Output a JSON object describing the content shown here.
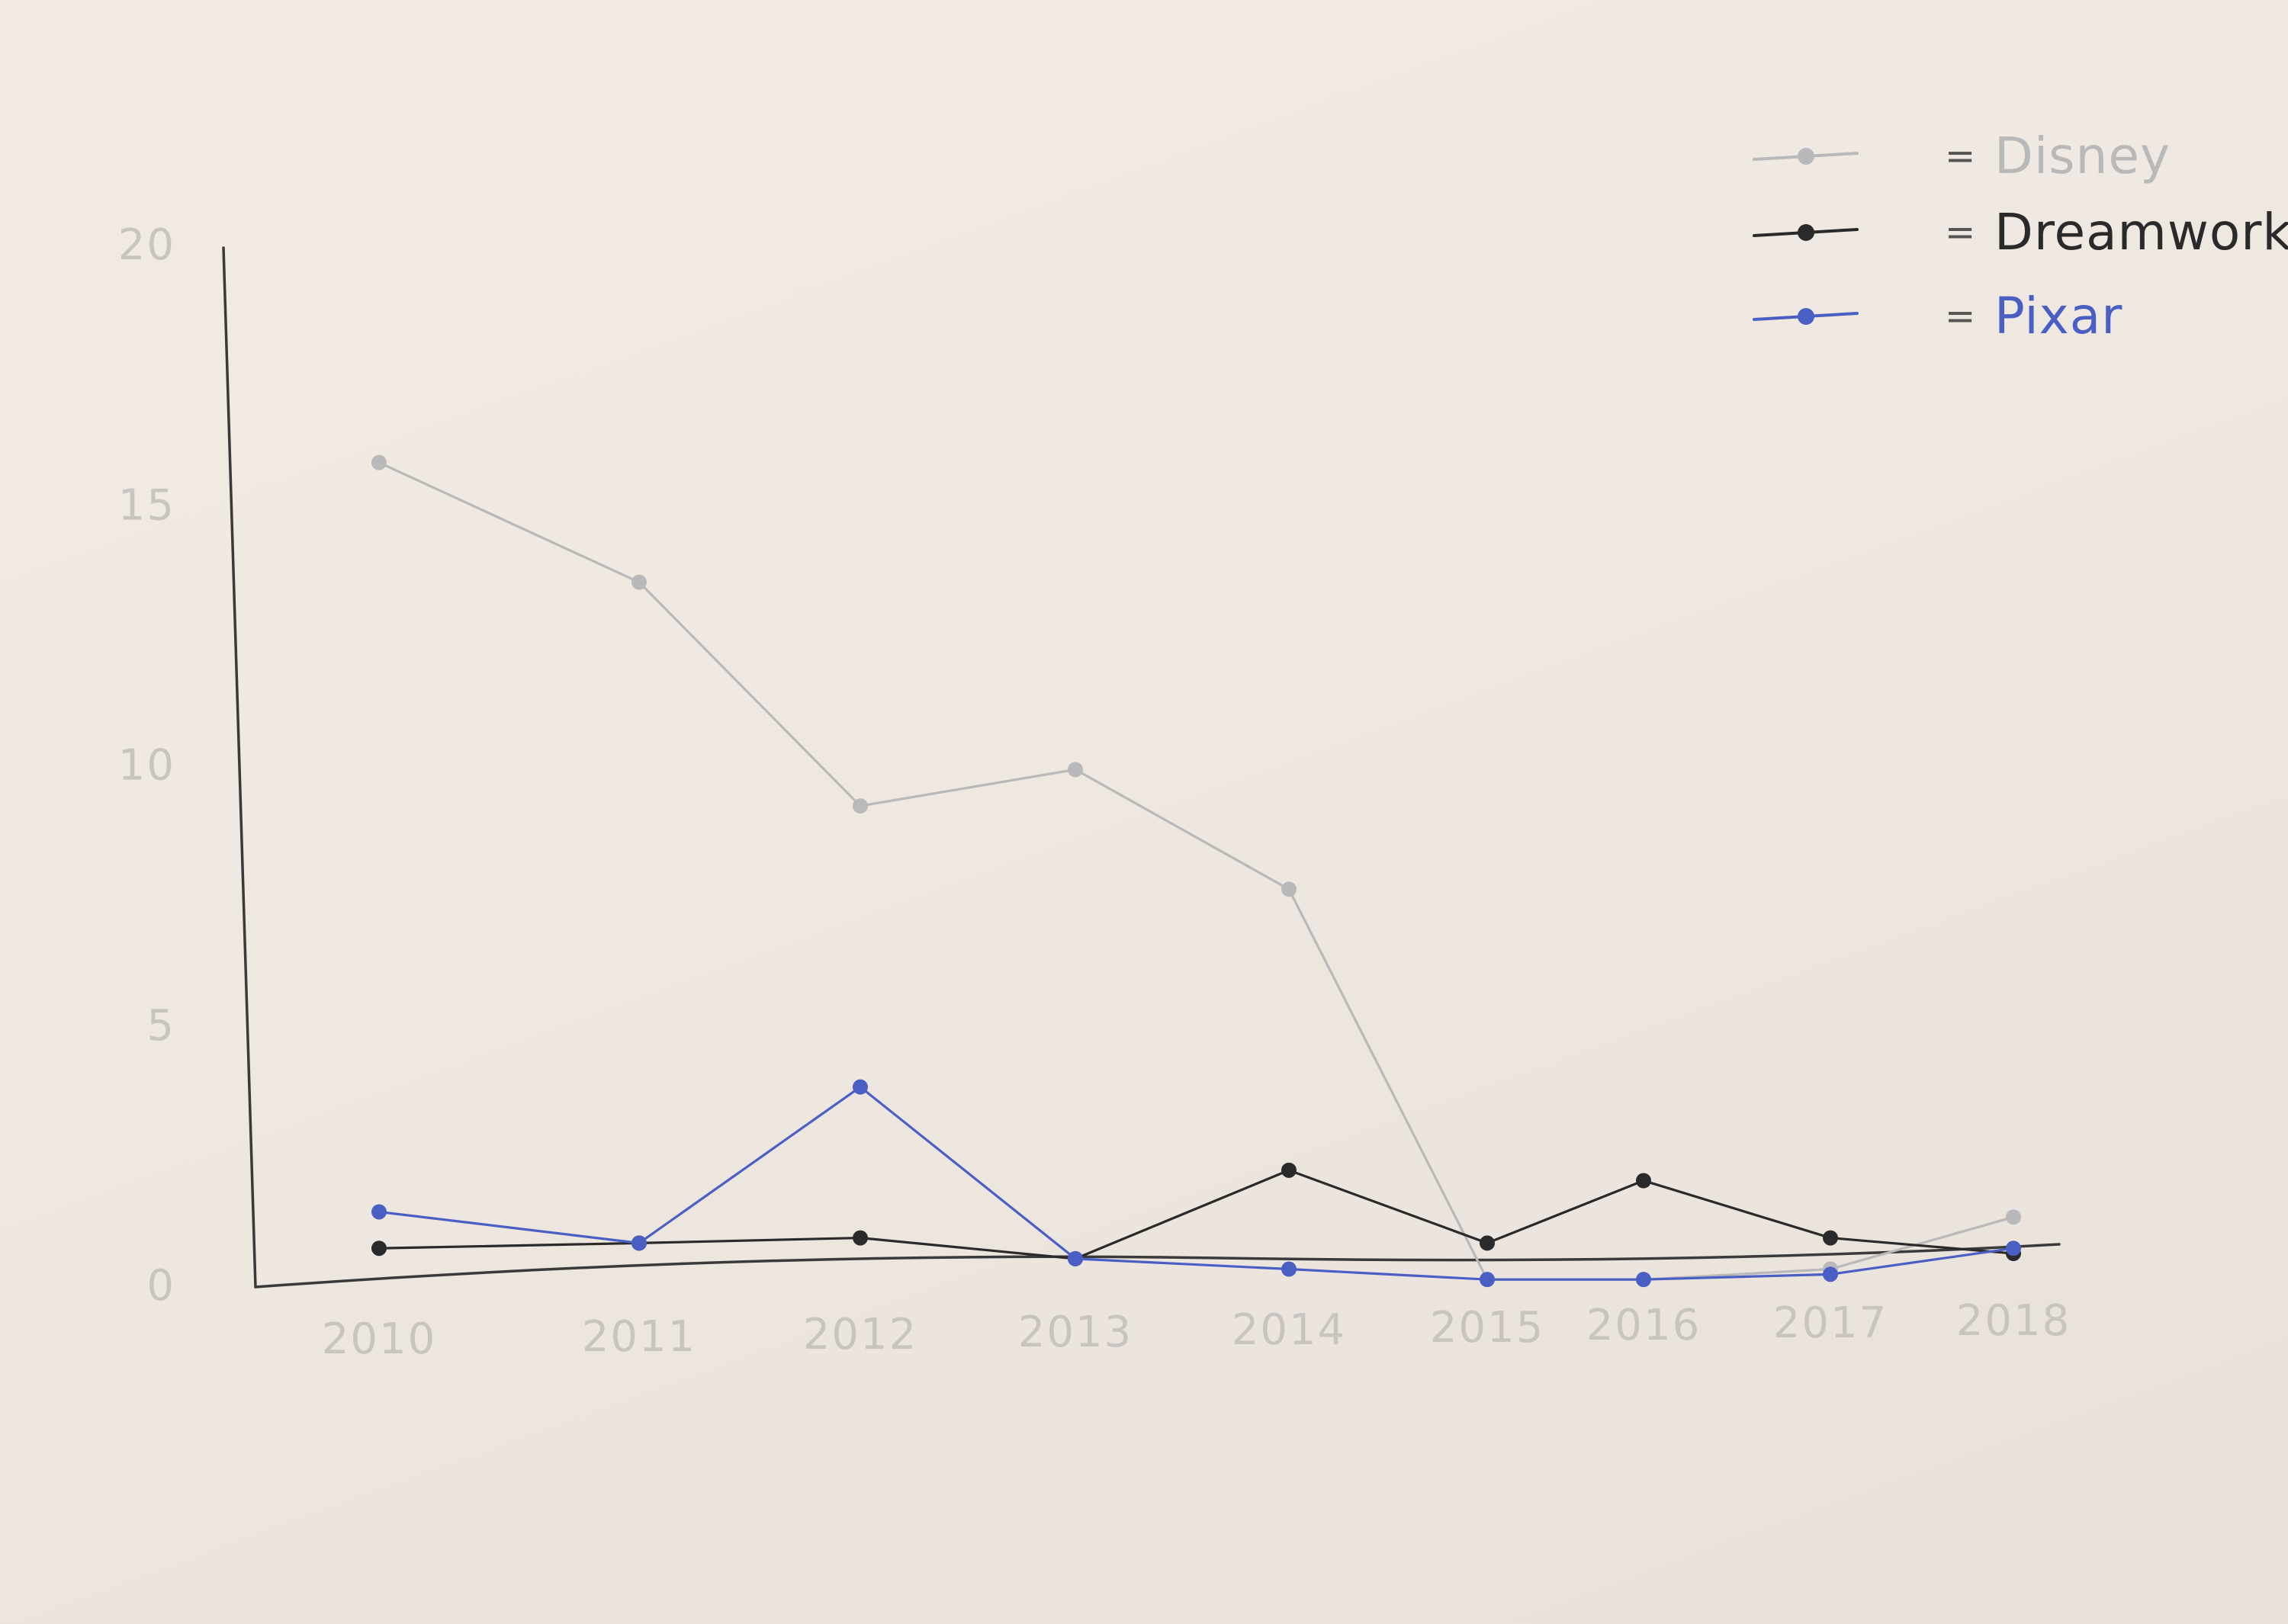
{
  "chart_data": {
    "type": "line",
    "title": "",
    "xlabel": "",
    "ylabel": "",
    "x": [
      "2010",
      "2011",
      "2012",
      "2013",
      "2014",
      "2015",
      "2016",
      "2017",
      "2018"
    ],
    "ylim": [
      0,
      20
    ],
    "y_ticks": [
      "0",
      "5",
      "10",
      "15",
      "20"
    ],
    "grid": false,
    "legend_position": "top-right",
    "legend_separator": "=",
    "series": [
      {
        "name": "Disney",
        "color": "#b9b9b9",
        "values": [
          15.8,
          13.5,
          9.2,
          9.9,
          7.6,
          0.1,
          0.1,
          0.3,
          1.3
        ]
      },
      {
        "name": "Dreamworks",
        "color": "#2a2a2a",
        "values": [
          0.7,
          0.8,
          0.9,
          0.5,
          2.2,
          0.8,
          2.0,
          0.9,
          0.6
        ]
      },
      {
        "name": "Pixar",
        "color": "#4a5fc4",
        "values": [
          1.4,
          0.8,
          3.8,
          0.5,
          0.3,
          0.1,
          0.1,
          0.2,
          0.7
        ]
      }
    ]
  }
}
